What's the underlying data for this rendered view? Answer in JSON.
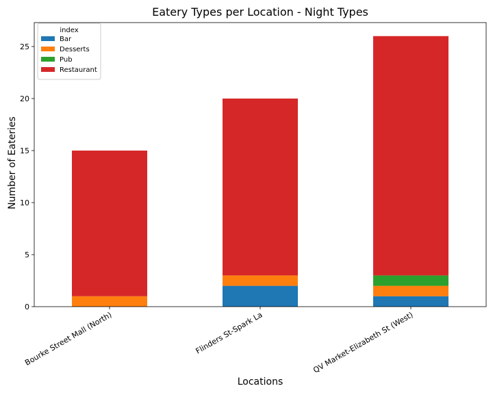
{
  "chart_data": {
    "type": "bar",
    "stacked": true,
    "title": "Eatery Types per Location - Night Types",
    "xlabel": "Locations",
    "ylabel": "Number of Eateries",
    "categories": [
      "Bourke Street Mall (North)",
      "Flinders St-Spark La",
      "QV Market-Elizabeth St (West)"
    ],
    "series": [
      {
        "name": "Bar",
        "values": [
          0,
          2,
          1
        ],
        "color": "#1f77b4"
      },
      {
        "name": "Desserts",
        "values": [
          1,
          1,
          1
        ],
        "color": "#ff7f0e"
      },
      {
        "name": "Pub",
        "values": [
          0,
          0,
          1
        ],
        "color": "#2ca02c"
      },
      {
        "name": "Restaurant",
        "values": [
          14,
          17,
          23
        ],
        "color": "#d62728"
      }
    ],
    "ylim": [
      0,
      27.3
    ],
    "yticks": [
      0,
      5,
      10,
      15,
      20,
      25
    ],
    "legend": {
      "title": "index",
      "placement": "top-left"
    },
    "grid": false
  }
}
